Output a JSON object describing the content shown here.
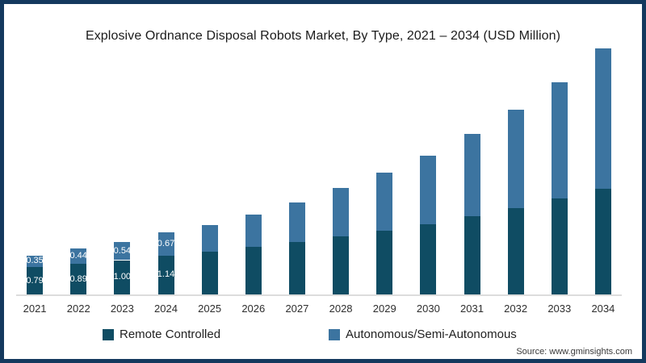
{
  "title": "Explosive Ordnance Disposal Robots Market, By Type, 2021 – 2034 (USD Million)",
  "source": "Source: www.gminsights.com",
  "colors": {
    "remote_controlled": "#0f4c63",
    "autonomous": "#3c74a0",
    "frame_border": "#14395e",
    "axis_line": "#dcdcdc"
  },
  "legend": {
    "items": [
      {
        "label": "Remote Controlled",
        "color": "#0f4c63"
      },
      {
        "label": "Autonomous/Semi-Autonomous",
        "color": "#3c74a0"
      }
    ]
  },
  "chart_data": {
    "type": "bar",
    "stacked": true,
    "title": "Explosive Ordnance Disposal Robots Market, By Type, 2021 – 2034 (USD Million)",
    "xlabel": "",
    "ylabel": "USD Million",
    "ylim": [
      0,
      7.6
    ],
    "grid": false,
    "legend_position": "bottom",
    "categories": [
      "2021",
      "2022",
      "2023",
      "2024",
      "2025",
      "2026",
      "2027",
      "2028",
      "2029",
      "2030",
      "2031",
      "2032",
      "2033",
      "2034"
    ],
    "series": [
      {
        "name": "Remote Controlled",
        "color": "#0f4c63",
        "values": [
          0.79,
          0.89,
          1.0,
          1.14,
          1.25,
          1.39,
          1.53,
          1.7,
          1.86,
          2.05,
          2.28,
          2.52,
          2.8,
          3.08
        ],
        "labels": [
          "0.79",
          "0.89",
          "1.00",
          "1.14",
          null,
          null,
          null,
          null,
          null,
          null,
          null,
          null,
          null,
          null
        ]
      },
      {
        "name": "Autonomous/Semi-Autonomous",
        "color": "#3c74a0",
        "values": [
          0.35,
          0.44,
          0.54,
          0.67,
          0.78,
          0.94,
          1.15,
          1.4,
          1.7,
          2.0,
          2.4,
          2.88,
          3.4,
          4.1
        ],
        "labels": [
          "0.35",
          "0.44",
          "0.54",
          "0.67",
          null,
          null,
          null,
          null,
          null,
          null,
          null,
          null,
          null,
          null
        ]
      }
    ]
  }
}
